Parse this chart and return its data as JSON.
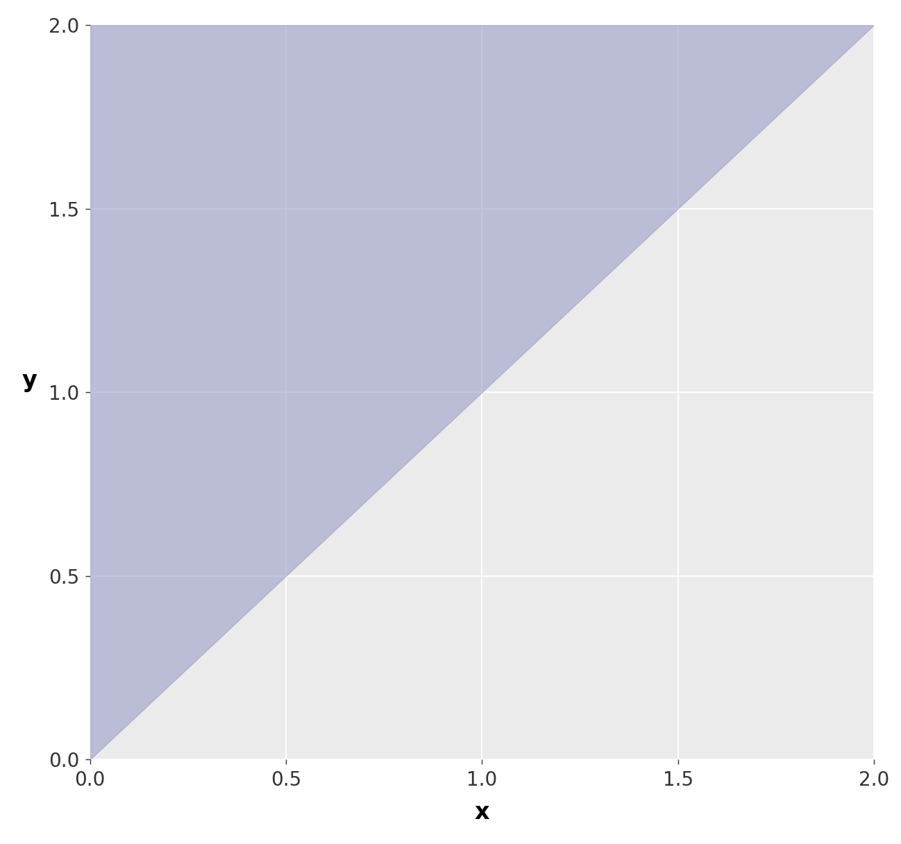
{
  "xlim": [
    0,
    2
  ],
  "ylim": [
    0,
    2
  ],
  "xlabel": "x",
  "ylabel": "y",
  "xticks": [
    0.0,
    0.5,
    1.0,
    1.5,
    2.0
  ],
  "yticks": [
    0.0,
    0.5,
    1.0,
    1.5,
    2.0
  ],
  "figure_bg_color": "#FFFFFF",
  "panel_bg_color": "#EBEBEB",
  "grid_color": "#FFFFFF",
  "fill_color": "#9B9DC8",
  "fill_alpha": 0.6,
  "tick_fontsize": 20,
  "label_fontsize": 24,
  "label_fontweight": "bold",
  "grid_linewidth": 1.5,
  "tick_color": "#333333"
}
